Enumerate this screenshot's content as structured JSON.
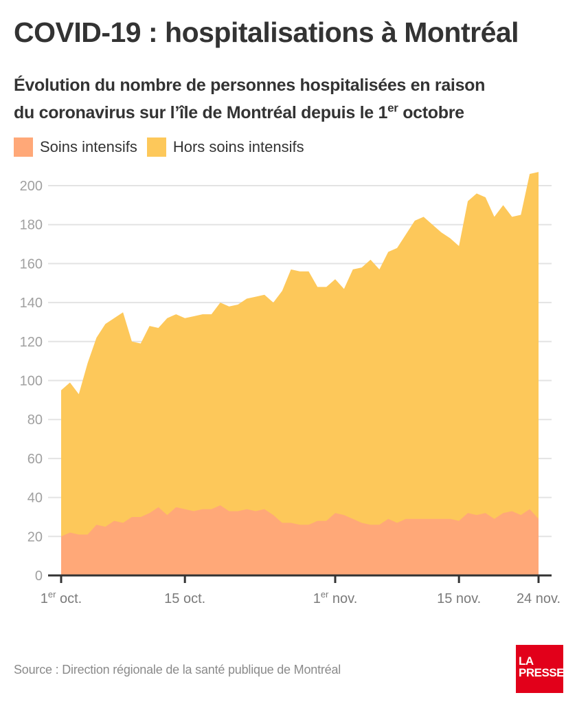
{
  "header": {
    "title": "COVID-19 : hospitalisations à Montréal",
    "subtitle_line1": "Évolution du nombre de personnes hospitalisées en raison",
    "subtitle_line2_before": "du coronavirus sur l’île de Montréal depuis le 1",
    "subtitle_line2_sup": "er",
    "subtitle_line2_after": " octobre"
  },
  "legend": [
    {
      "label": "Soins intensifs",
      "color": "#FFA878"
    },
    {
      "label": "Hors soins intensifs",
      "color": "#FDC85A"
    }
  ],
  "footer": {
    "source": "Source : Direction régionale de la santé publique de Montréal",
    "logo_line1": "LA",
    "logo_line2": "PRESSE"
  },
  "chart_data": {
    "type": "area",
    "stacked": true,
    "title": "COVID-19 : hospitalisations à Montréal",
    "xlabel": "",
    "ylabel": "",
    "x_start": "1er octobre",
    "x_end": "24 novembre",
    "n_days": 55,
    "ylim": [
      0,
      200
    ],
    "yticks": [
      0,
      20,
      40,
      60,
      80,
      100,
      120,
      140,
      160,
      180,
      200
    ],
    "grid": true,
    "legend_position": "top-left",
    "xticks": [
      {
        "day_index": 0,
        "label": "1",
        "sup": "er",
        "suffix": " oct."
      },
      {
        "day_index": 14,
        "label": "15 oct.",
        "sup": "",
        "suffix": ""
      },
      {
        "day_index": 31,
        "label": "1",
        "sup": "er",
        "suffix": " nov."
      },
      {
        "day_index": 45,
        "label": "15 nov.",
        "sup": "",
        "suffix": ""
      },
      {
        "day_index": 54,
        "label": "24 nov.",
        "sup": "",
        "suffix": ""
      }
    ],
    "series": [
      {
        "name": "Soins intensifs",
        "color": "#FFA878",
        "values": [
          20,
          22,
          21,
          21,
          26,
          25,
          28,
          27,
          30,
          30,
          32,
          35,
          31,
          35,
          34,
          33,
          34,
          34,
          36,
          33,
          33,
          34,
          33,
          34,
          31,
          27,
          27,
          26,
          26,
          28,
          28,
          32,
          31,
          29,
          27,
          26,
          26,
          29,
          27,
          29,
          29,
          29,
          29,
          29,
          29,
          28,
          32,
          31,
          32,
          29,
          32,
          33,
          31,
          34,
          29
        ]
      },
      {
        "name": "Hors soins intensifs",
        "color": "#FDC85A",
        "values": [
          75,
          77,
          72,
          88,
          96,
          104,
          104,
          108,
          90,
          89,
          96,
          92,
          101,
          99,
          98,
          100,
          100,
          100,
          104,
          105,
          106,
          108,
          110,
          110,
          109,
          119,
          130,
          130,
          130,
          120,
          120,
          120,
          116,
          128,
          131,
          136,
          131,
          137,
          141,
          146,
          153,
          155,
          151,
          147,
          144,
          141,
          160,
          165,
          162,
          155,
          158,
          151,
          154,
          172,
          178
        ]
      }
    ],
    "totals": [
      95,
      99,
      93,
      109,
      122,
      129,
      132,
      135,
      120,
      119,
      128,
      127,
      132,
      134,
      132,
      133,
      134,
      134,
      140,
      138,
      139,
      142,
      143,
      144,
      140,
      146,
      157,
      156,
      156,
      148,
      148,
      152,
      147,
      157,
      158,
      162,
      157,
      166,
      168,
      175,
      182,
      184,
      180,
      176,
      173,
      169,
      192,
      196,
      194,
      184,
      190,
      184,
      185,
      206,
      207
    ]
  }
}
